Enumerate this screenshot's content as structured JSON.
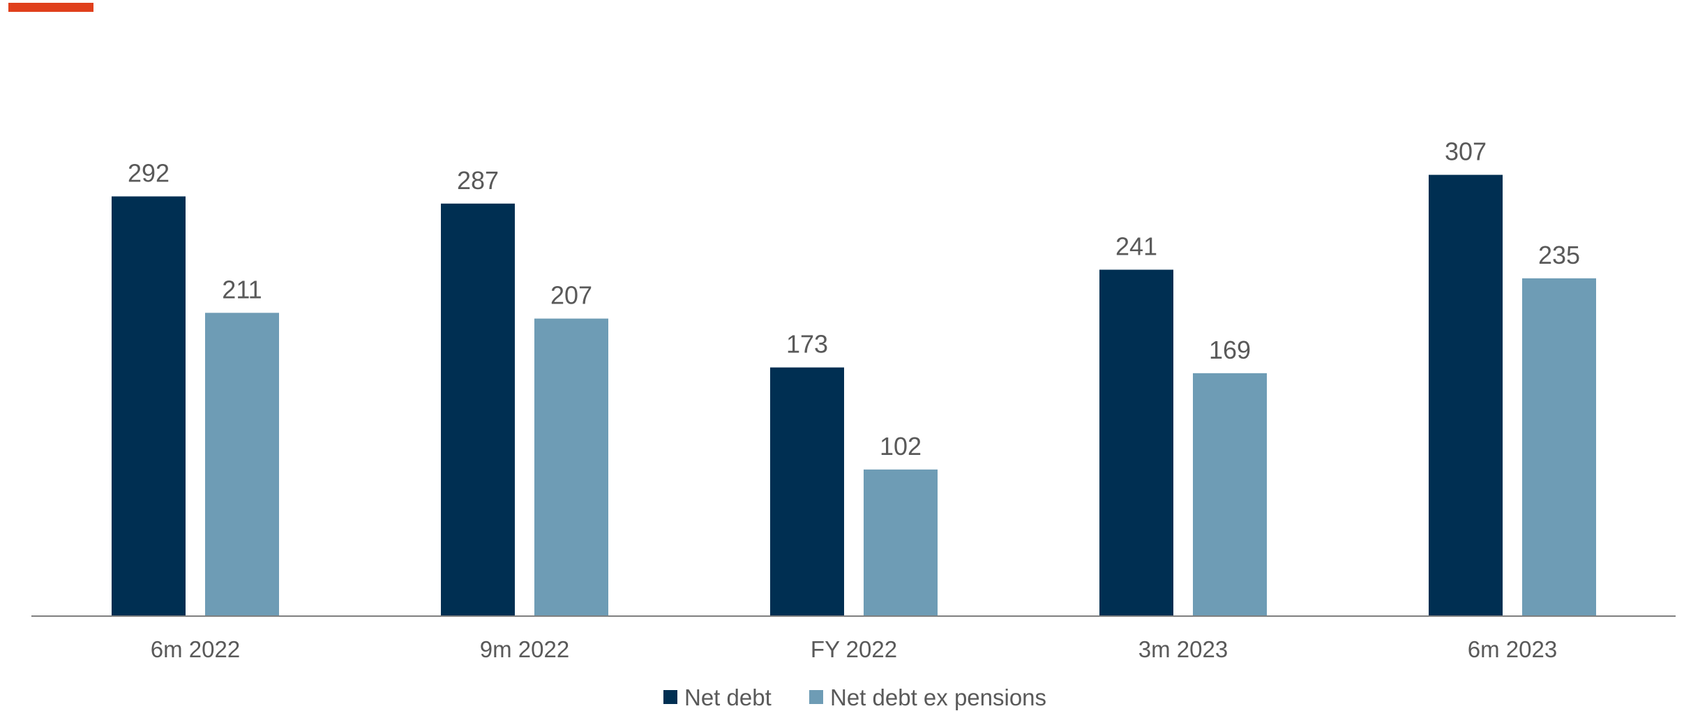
{
  "colors": {
    "accent": "#E0401C",
    "net_debt": "#002F52",
    "net_debt_ex_pensions": "#6E9CB5",
    "axis": "#7F7F7F",
    "text": "#595959"
  },
  "chart_data": {
    "type": "bar",
    "title": "",
    "xlabel": "",
    "ylabel": "",
    "ylim": [
      0,
      320
    ],
    "grid": false,
    "legend_position": "bottom",
    "categories": [
      "6m 2022",
      "9m 2022",
      "FY 2022",
      "3m 2023",
      "6m 2023"
    ],
    "series": [
      {
        "name": "Net debt",
        "color": "#002F52",
        "values": [
          292,
          287,
          173,
          241,
          307
        ]
      },
      {
        "name": "Net debt ex pensions",
        "color": "#6E9CB5",
        "values": [
          211,
          207,
          102,
          169,
          235
        ]
      }
    ]
  }
}
